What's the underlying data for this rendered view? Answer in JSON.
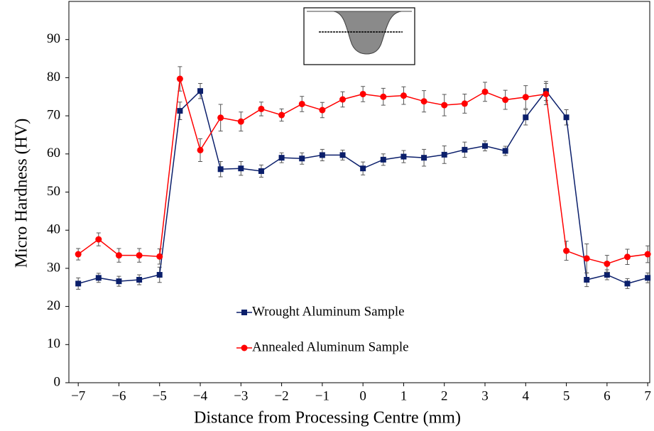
{
  "chart_data": {
    "type": "line",
    "x_label": "Distance from Processing Centre (mm)",
    "y_label": "Micro Hardness (HV)",
    "x": [
      -7,
      -6.5,
      -6,
      -5.5,
      -5,
      -4.5,
      -4,
      -3.5,
      -3,
      -2.5,
      -2,
      -1.5,
      -1,
      -0.5,
      0,
      0.5,
      1,
      1.5,
      2,
      2.5,
      3,
      3.5,
      4,
      4.5,
      5,
      5.5,
      6,
      6.5,
      7
    ],
    "series": [
      {
        "name": "Wrought Aluminum Sample",
        "color": "#0b1f6b",
        "marker": "square",
        "values": [
          26,
          27.5,
          26.6,
          27,
          28.3,
          71.3,
          76.5,
          56,
          56.2,
          55.5,
          59,
          58.8,
          59.7,
          59.7,
          56.2,
          58.5,
          59.3,
          59,
          59.8,
          61.1,
          62.1,
          60.8,
          69.6,
          76.5,
          69.6,
          27,
          28.3,
          26,
          27.5
        ],
        "errors": [
          1.5,
          1.2,
          1.3,
          1.3,
          2,
          2.3,
          2,
          2,
          1.8,
          1.6,
          1.3,
          1.5,
          1.5,
          1.3,
          1.7,
          1.5,
          1.6,
          2.2,
          2.3,
          2,
          1.3,
          1.2,
          2,
          2.5,
          2,
          1.8,
          1.3,
          1.3,
          1.3
        ]
      },
      {
        "name": "Annealed Aluminum Sample",
        "color": "#ff0000",
        "marker": "circle",
        "values": [
          33.7,
          37.6,
          33.4,
          33.4,
          33.1,
          79.7,
          61,
          69.5,
          68.5,
          71.8,
          70.2,
          73.1,
          71.5,
          74.3,
          75.7,
          75,
          75.3,
          73.8,
          72.8,
          73.2,
          76.3,
          74.2,
          74.9,
          75.7,
          34.6,
          32.6,
          31.2,
          33,
          33.7
        ],
        "errors": [
          1.5,
          1.7,
          1.8,
          1.8,
          2,
          3.2,
          3,
          3.5,
          2.5,
          1.8,
          1.6,
          2,
          2,
          2,
          2,
          2.2,
          2.3,
          2.8,
          2.8,
          2.5,
          2.5,
          2.5,
          3,
          2.8,
          2.5,
          3.8,
          2.2,
          2,
          2.2
        ]
      }
    ],
    "xlim": [
      -7.23,
      7.05
    ],
    "ylim": [
      0,
      100
    ],
    "xticks": [
      {
        "value": -7,
        "label": "−7"
      },
      {
        "value": -6,
        "label": "−6"
      },
      {
        "value": -5,
        "label": "−5"
      },
      {
        "value": -4,
        "label": "−4"
      },
      {
        "value": -3,
        "label": "−3"
      },
      {
        "value": -2,
        "label": "−2"
      },
      {
        "value": -1,
        "label": "−1"
      },
      0,
      1,
      2,
      3,
      4,
      5,
      6,
      7
    ],
    "yticks": [
      0,
      10,
      20,
      30,
      40,
      50,
      60,
      70,
      80,
      90
    ],
    "legend": "lower-left",
    "grid": false
  }
}
